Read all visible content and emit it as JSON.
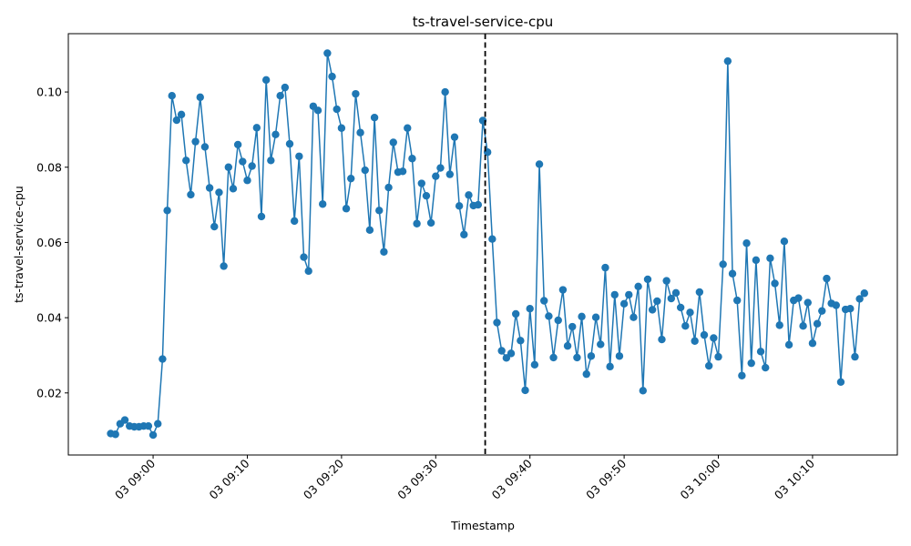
{
  "chart_data": {
    "type": "line",
    "title": "ts-travel-service-cpu",
    "xlabel": "Timestamp",
    "ylabel": "ts-travel-service-cpu",
    "date": "03",
    "xlim": [
      "08:51",
      "10:19"
    ],
    "ylim": [
      0.0035,
      0.1155
    ],
    "x_tick_labels": [
      "03 09:00",
      "03 09:10",
      "03 09:20",
      "03 09:30",
      "03 09:40",
      "03 09:50",
      "03 10:00",
      "03 10:10"
    ],
    "y_ticks": [
      0.02,
      0.04,
      0.06,
      0.08,
      0.1
    ],
    "y_tick_labels": [
      "0.02",
      "0.04",
      "0.06",
      "0.08",
      "0.10"
    ],
    "grid": false,
    "line_color": "#1f77b4",
    "marker": "circle",
    "vline": {
      "time": "09:35:15",
      "style": "dashed",
      "color": "#000000"
    },
    "series": [
      {
        "x": [
          "08:55:30",
          "08:56:00",
          "08:56:30",
          "08:57:00",
          "08:57:30",
          "08:58:00",
          "08:58:30",
          "08:59:00",
          "08:59:30",
          "09:00:00",
          "09:00:30",
          "09:01:00",
          "09:01:30",
          "09:02:00",
          "09:02:30",
          "09:03:00",
          "09:03:30",
          "09:04:00",
          "09:04:30",
          "09:05:00",
          "09:05:30",
          "09:06:00",
          "09:06:30",
          "09:07:00",
          "09:07:30",
          "09:08:00",
          "09:08:30",
          "09:09:00",
          "09:09:30",
          "09:10:00",
          "09:10:30",
          "09:11:00",
          "09:11:30",
          "09:12:00",
          "09:12:30",
          "09:13:00",
          "09:13:30",
          "09:14:00",
          "09:14:30",
          "09:15:00",
          "09:15:30",
          "09:16:00",
          "09:16:30",
          "09:17:00",
          "09:17:30",
          "09:18:00",
          "09:18:30",
          "09:19:00",
          "09:19:30",
          "09:20:00",
          "09:20:30",
          "09:21:00",
          "09:21:30",
          "09:22:00",
          "09:22:30",
          "09:23:00",
          "09:23:30",
          "09:24:00",
          "09:24:30",
          "09:25:00",
          "09:25:30",
          "09:26:00",
          "09:26:30",
          "09:27:00",
          "09:27:30",
          "09:28:00",
          "09:28:30",
          "09:29:00",
          "09:29:30",
          "09:30:00",
          "09:30:30",
          "09:31:00",
          "09:31:30",
          "09:32:00",
          "09:32:30",
          "09:33:00",
          "09:33:30",
          "09:34:00",
          "09:34:30",
          "09:35:00",
          "09:35:30",
          "09:36:00",
          "09:36:30",
          "09:37:00",
          "09:37:30",
          "09:38:00",
          "09:38:30",
          "09:39:00",
          "09:39:30",
          "09:40:00",
          "09:40:30",
          "09:41:00",
          "09:41:30",
          "09:42:00",
          "09:42:30",
          "09:43:00",
          "09:43:30",
          "09:44:00",
          "09:44:30",
          "09:45:00",
          "09:45:30",
          "09:46:00",
          "09:46:30",
          "09:47:00",
          "09:47:30",
          "09:48:00",
          "09:48:30",
          "09:49:00",
          "09:49:30",
          "09:50:00",
          "09:50:30",
          "09:51:00",
          "09:51:30",
          "09:52:00",
          "09:52:30",
          "09:53:00",
          "09:53:30",
          "09:54:00",
          "09:54:30",
          "09:55:00",
          "09:55:30",
          "09:56:00",
          "09:56:30",
          "09:57:00",
          "09:57:30",
          "09:58:00",
          "09:58:30",
          "09:59:00",
          "09:59:30",
          "10:00:00",
          "10:00:30",
          "10:01:00",
          "10:01:30",
          "10:02:00",
          "10:02:30",
          "10:03:00",
          "10:03:30",
          "10:04:00",
          "10:04:30",
          "10:05:00",
          "10:05:30",
          "10:06:00",
          "10:06:30",
          "10:07:00",
          "10:07:30",
          "10:08:00",
          "10:08:30",
          "10:09:00",
          "10:09:30",
          "10:10:00",
          "10:10:30",
          "10:11:00",
          "10:11:30",
          "10:12:00",
          "10:12:30",
          "10:13:00",
          "10:13:30",
          "10:14:00",
          "10:14:30",
          "10:15:00",
          "10:15:30"
        ],
        "values": [
          0.0092,
          0.009,
          0.0118,
          0.0128,
          0.0112,
          0.011,
          0.011,
          0.0112,
          0.0112,
          0.0088,
          0.0118,
          0.029,
          0.0685,
          0.099,
          0.0925,
          0.094,
          0.0818,
          0.0727,
          0.0868,
          0.0986,
          0.0854,
          0.0745,
          0.0642,
          0.0733,
          0.0537,
          0.08,
          0.0743,
          0.086,
          0.0815,
          0.0765,
          0.0803,
          0.0905,
          0.0669,
          0.1032,
          0.0818,
          0.0887,
          0.099,
          0.1012,
          0.0862,
          0.0657,
          0.0829,
          0.0561,
          0.0524,
          0.0962,
          0.0951,
          0.0702,
          0.1103,
          0.1041,
          0.0954,
          0.0904,
          0.069,
          0.077,
          0.0995,
          0.0892,
          0.0792,
          0.0633,
          0.0932,
          0.0685,
          0.0575,
          0.0746,
          0.0866,
          0.0787,
          0.0789,
          0.0904,
          0.0823,
          0.065,
          0.0757,
          0.0724,
          0.0652,
          0.0776,
          0.0798,
          0.1,
          0.0781,
          0.088,
          0.0697,
          0.0621,
          0.0726,
          0.0698,
          0.07,
          0.0924,
          0.084,
          0.0609,
          0.0387,
          0.0312,
          0.0293,
          0.0305,
          0.041,
          0.0339,
          0.0207,
          0.0424,
          0.0275,
          0.0808,
          0.0445,
          0.0404,
          0.0294,
          0.0393,
          0.0474,
          0.0325,
          0.0376,
          0.0294,
          0.0403,
          0.025,
          0.0298,
          0.0401,
          0.0329,
          0.0533,
          0.027,
          0.0461,
          0.0298,
          0.0437,
          0.0461,
          0.0401,
          0.0483,
          0.0206,
          0.0502,
          0.0421,
          0.0444,
          0.0342,
          0.0498,
          0.0451,
          0.0466,
          0.0427,
          0.0378,
          0.0414,
          0.0338,
          0.0468,
          0.0354,
          0.0272,
          0.0346,
          0.0296,
          0.0542,
          0.1082,
          0.0517,
          0.0446,
          0.0246,
          0.0598,
          0.0279,
          0.0553,
          0.031,
          0.0267,
          0.0558,
          0.0491,
          0.038,
          0.0603,
          0.0328,
          0.0446,
          0.0452,
          0.0378,
          0.044,
          0.0332,
          0.0384,
          0.0418,
          0.0504,
          0.0438,
          0.0433,
          0.0229,
          0.0422,
          0.0424,
          0.0296,
          0.045,
          0.0465
        ]
      }
    ]
  }
}
